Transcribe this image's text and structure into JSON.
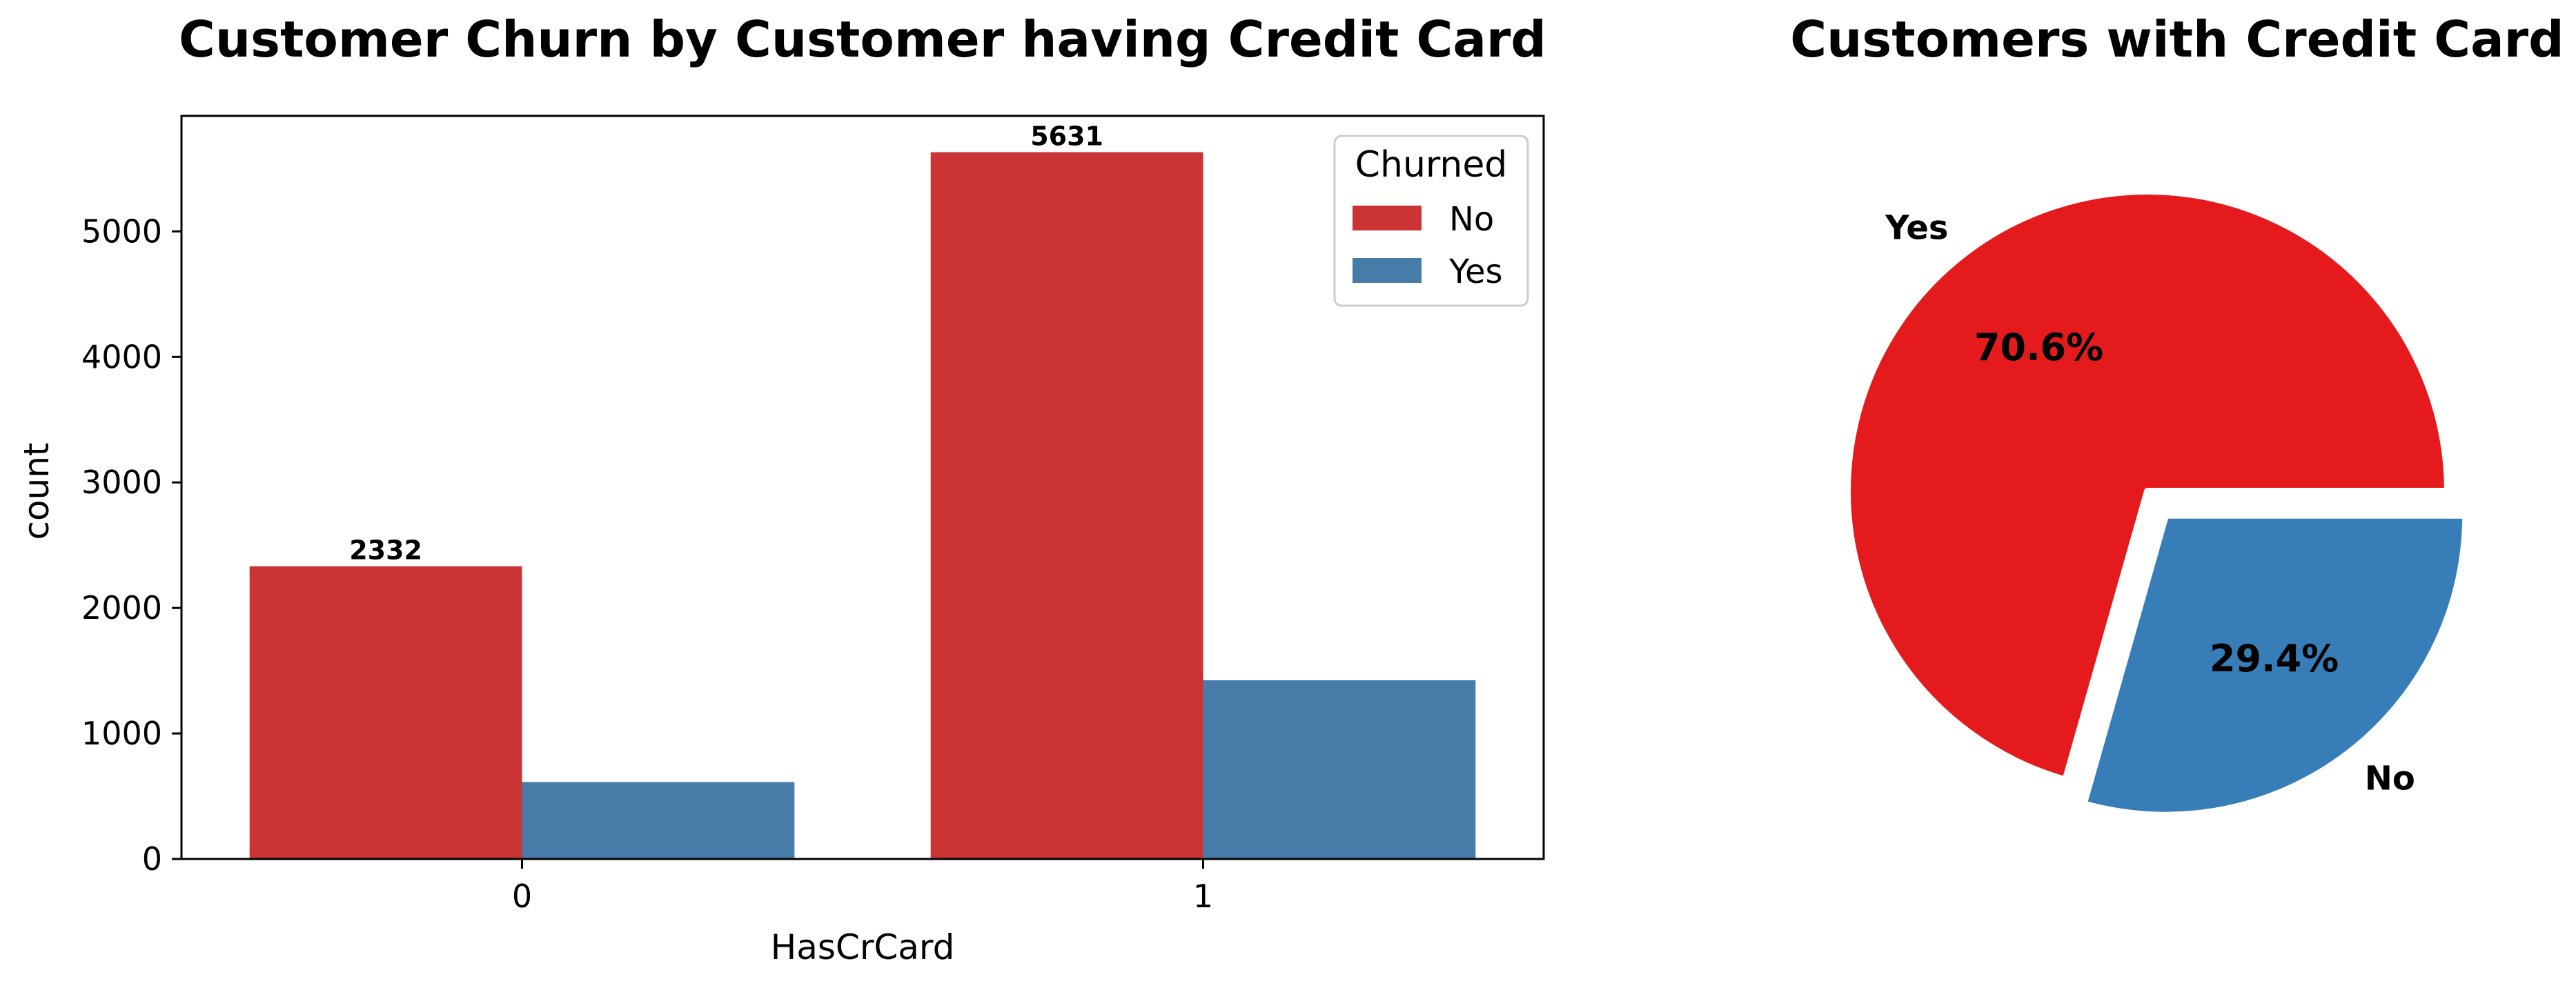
{
  "chart_data": [
    {
      "type": "bar",
      "title": "Customer Churn by Customer having Credit Card",
      "xlabel": "HasCrCard",
      "ylabel": "count",
      "categories": [
        "0",
        "1"
      ],
      "ylim": [
        0,
        5920
      ],
      "yticks": [
        0,
        1000,
        2000,
        3000,
        4000,
        5000
      ],
      "legend": {
        "title": "Churned",
        "position": "top-right"
      },
      "grid": false,
      "series": [
        {
          "name": "No",
          "color": "#cb3335",
          "values": [
            2332,
            5631
          ]
        },
        {
          "name": "Yes",
          "color": "#477ca8",
          "values": [
            613,
            1424
          ]
        }
      ],
      "annotations": [
        {
          "series": "No",
          "category": "0",
          "text": "2332"
        },
        {
          "series": "No",
          "category": "1",
          "text": "5631"
        }
      ]
    },
    {
      "type": "pie",
      "title": "Customers with Credit Card",
      "slices": [
        {
          "label": "Yes",
          "value": 70.6,
          "pct_text": "70.6%",
          "color": "#e41a1c",
          "explode": false
        },
        {
          "label": "No",
          "value": 29.4,
          "pct_text": "29.4%",
          "color": "#377eb8",
          "explode": true
        }
      ]
    }
  ]
}
